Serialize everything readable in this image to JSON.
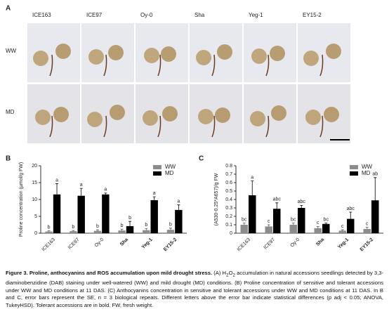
{
  "panel_a": {
    "label": "A",
    "columns": [
      "ICE163",
      "ICE97",
      "Oy-0",
      "Sha",
      "Yeg-1",
      "EY15-2"
    ],
    "rows": [
      "WW",
      "MD"
    ]
  },
  "chart_data": [
    {
      "type": "bar",
      "label": "B",
      "ylabel": "Proline concentration (µmol/g FW)",
      "categories": [
        "ICE163",
        "ICE97",
        "Oy-0",
        "Sha",
        "Yeg-1",
        "EY15-2"
      ],
      "category_bold": [
        false,
        false,
        false,
        true,
        true,
        true
      ],
      "series": [
        {
          "name": "WW",
          "color": "#8c8c8c",
          "values": [
            0.5,
            0.6,
            0.7,
            0.8,
            0.9,
            1.0
          ],
          "errors": [
            0.2,
            0.2,
            0.3,
            0.4,
            0.5,
            0.5
          ],
          "letters": [
            "b",
            "b",
            "b",
            "b",
            "b",
            "b"
          ]
        },
        {
          "name": "MD",
          "color": "#000000",
          "values": [
            11.5,
            11.1,
            11.5,
            2.1,
            9.8,
            6.9
          ],
          "errors": [
            3.2,
            2.2,
            0.4,
            1.4,
            1.0,
            1.5
          ],
          "letters": [
            "a",
            "a",
            "a",
            "b",
            "a",
            "a"
          ]
        }
      ],
      "ylim": [
        0,
        20
      ],
      "yticks": [
        0,
        5,
        10,
        15,
        20
      ],
      "legend": "upper-right"
    },
    {
      "type": "bar",
      "label": "C",
      "ylabel": "(A530-0.25*A657)/g FW",
      "categories": [
        "ICE163",
        "ICE97",
        "Oy-0",
        "Sha",
        "Yeg-1",
        "EY15-2"
      ],
      "category_bold": [
        false,
        false,
        false,
        true,
        true,
        true
      ],
      "series": [
        {
          "name": "WW",
          "color": "#8c8c8c",
          "values": [
            0.1,
            0.08,
            0.1,
            0.06,
            0.03,
            0.05
          ],
          "errors": [
            0.02,
            0.02,
            0.02,
            0.02,
            0.01,
            0.02
          ],
          "letters": [
            "bc",
            "c",
            "bc",
            "c",
            "c",
            "c"
          ]
        },
        {
          "name": "MD",
          "color": "#000000",
          "values": [
            0.45,
            0.29,
            0.3,
            0.11,
            0.17,
            0.39
          ],
          "errors": [
            0.17,
            0.07,
            0.03,
            0.01,
            0.08,
            0.27
          ],
          "letters": [
            "a",
            "abc",
            "abc",
            "bc",
            "abc",
            "ab"
          ]
        }
      ],
      "ylim": [
        0,
        0.8
      ],
      "yticks": [
        0,
        0.1,
        0.2,
        0.3,
        0.4,
        0.5,
        0.6,
        0.7,
        0.8
      ],
      "legend": "upper-right"
    }
  ],
  "caption": {
    "title": "Figure 3. Proline, anthocyanins and ROS accumulation upon mild drought stress.",
    "text_1": " (A) H",
    "sub_1": "2",
    "text_2": "O",
    "sub_2": "2",
    "text_3": " accumulation in natural accessions seedlings detected by 3,3-diaminobenzidine (DAB) staining under well-watered (WW) and mild drought (MD) conditions. (B) Proline concentration of sensitive and tolerant accessions under WW and MD conditions at 11 DAS. (C) Anthocyanins concentration in sensitive and tolerant accessions under WW and MD conditions at 11 DAS. In B and C, error bars represent the SE, n = 3 biological repeats. Different letters above the error bar indicate statistical differences (p adj < 0.05; ANOVA, TukeyHSD). Tolerant accessions are in bold. FW, fresh weight."
  }
}
